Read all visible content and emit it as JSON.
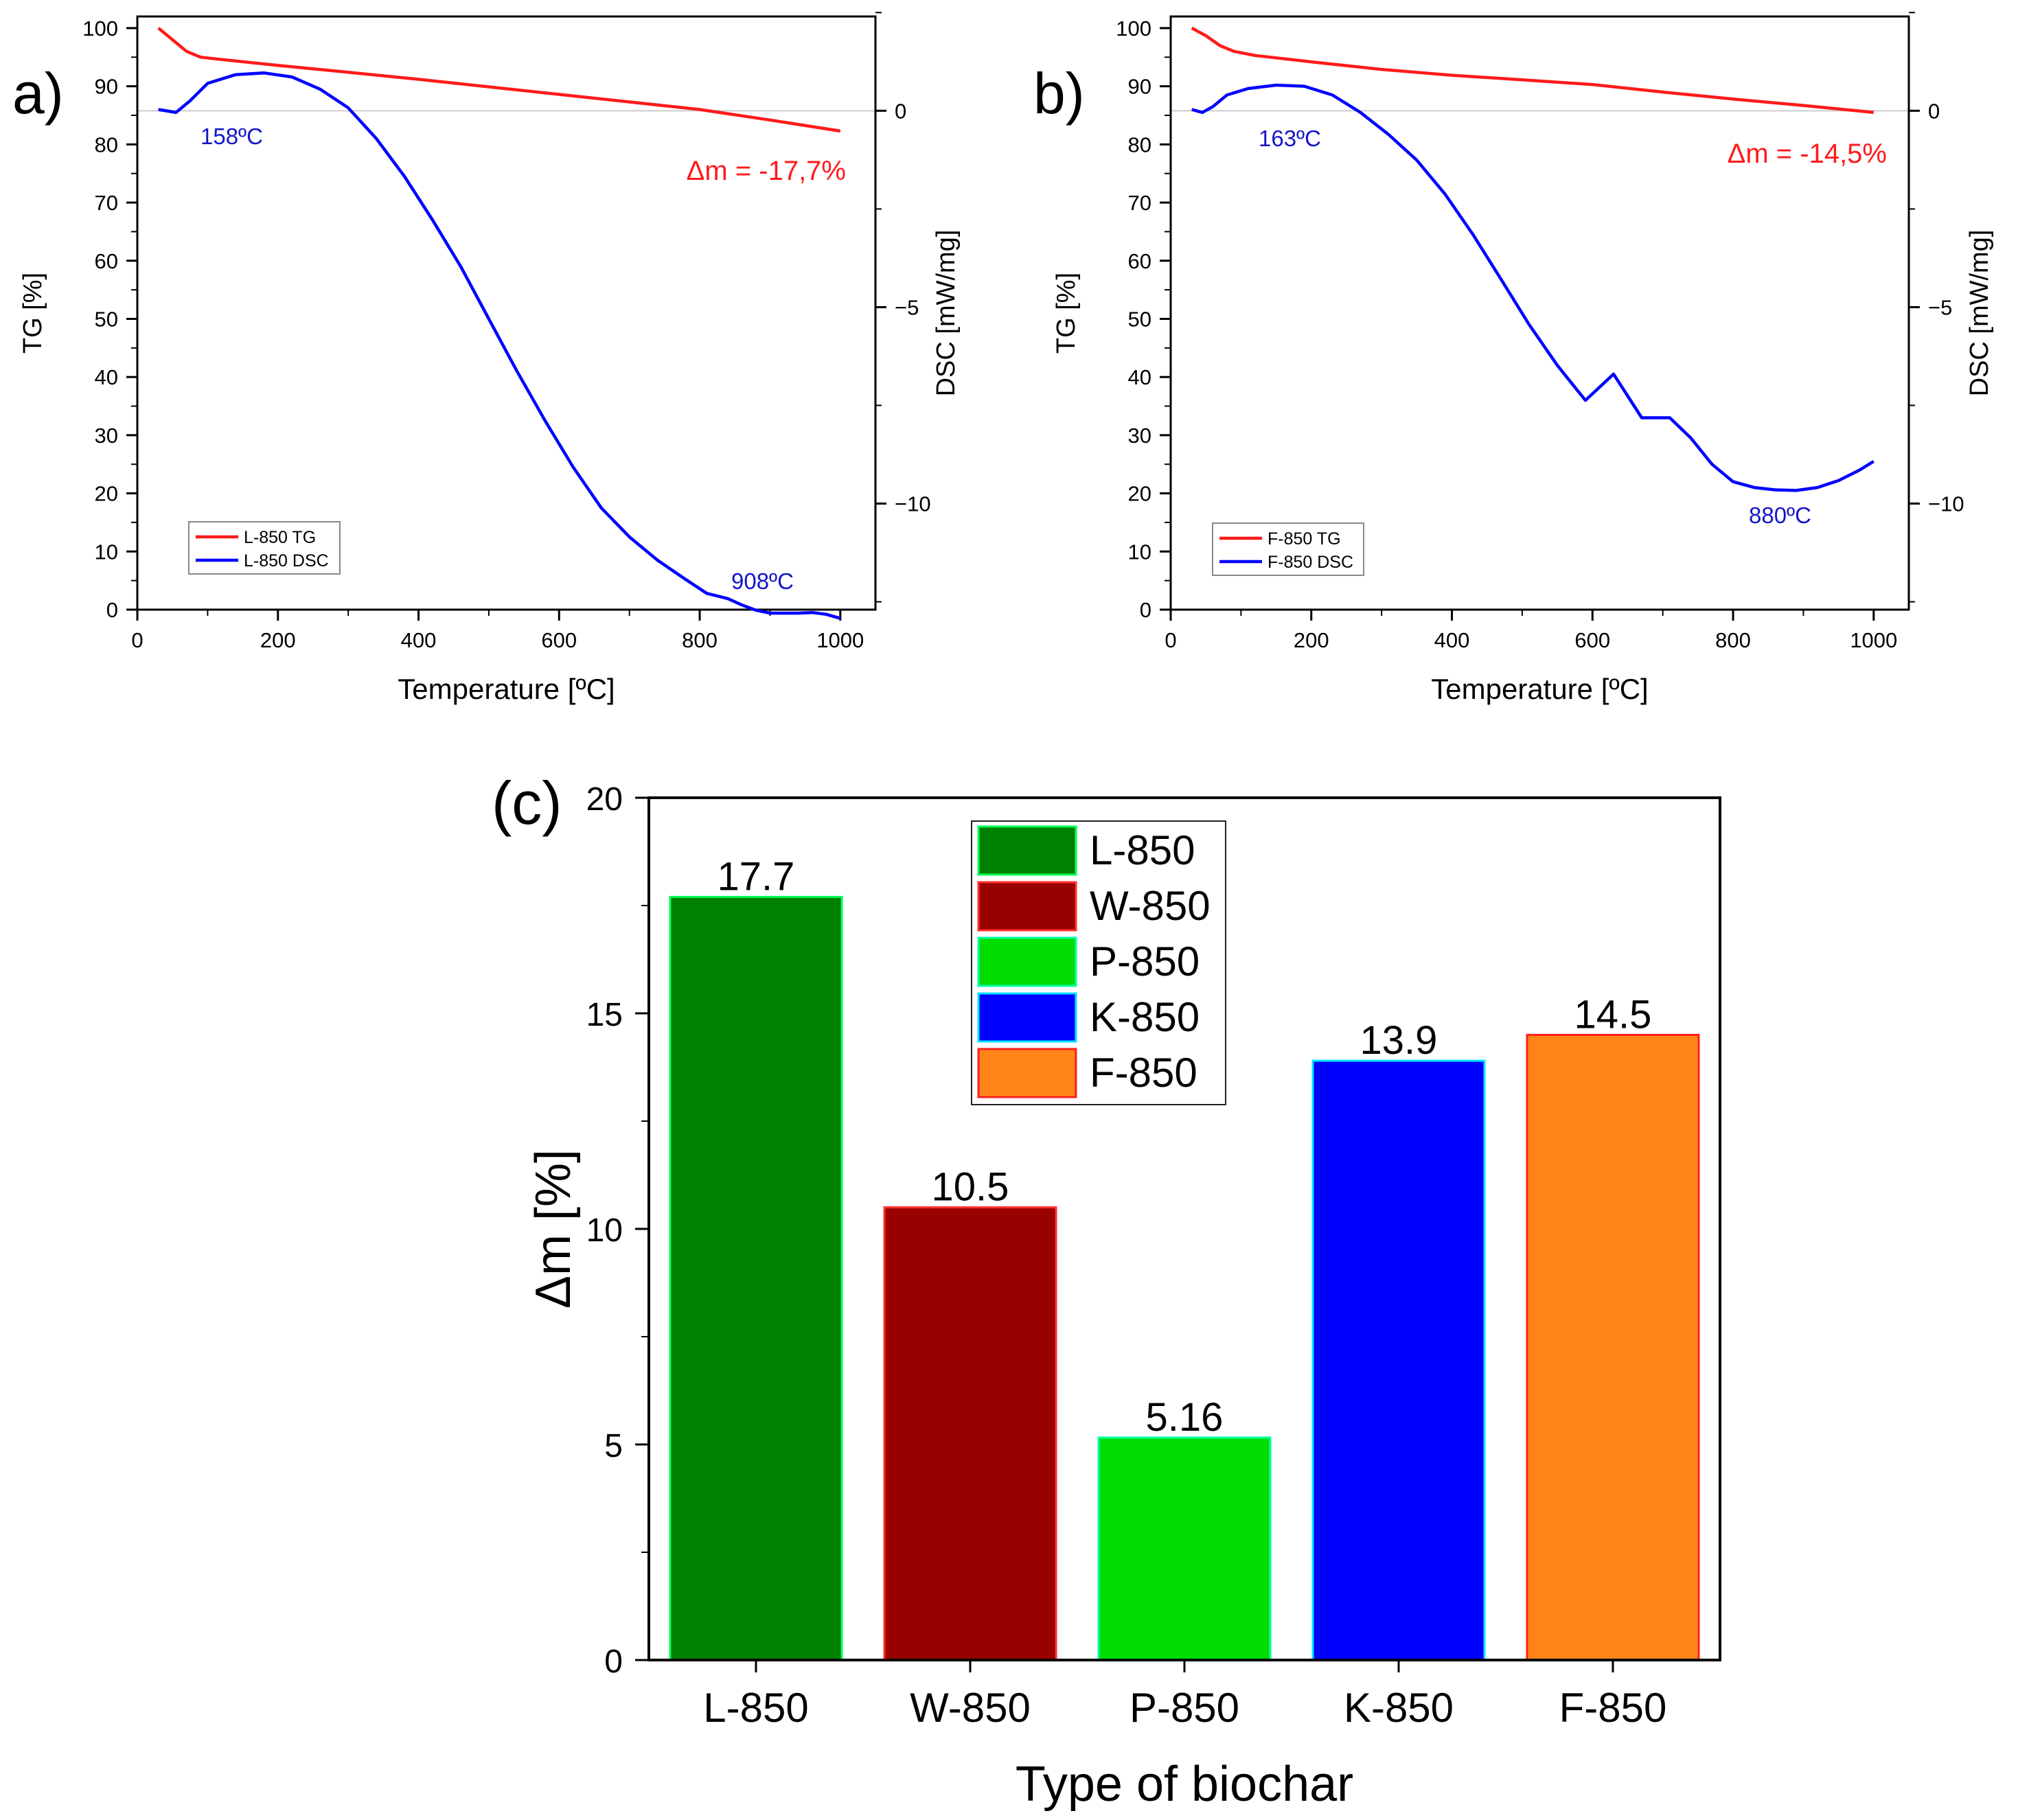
{
  "chart_data": [
    {
      "panel_label": "a)",
      "type": "line",
      "x_axis": {
        "label": "Temperature [ºC]",
        "range": [
          0,
          1050
        ],
        "ticks": [
          0,
          200,
          400,
          600,
          800,
          1000
        ]
      },
      "y_left": {
        "label": "TG [%]",
        "range": [
          0,
          102
        ],
        "ticks": [
          0,
          10,
          20,
          30,
          40,
          50,
          60,
          70,
          80,
          90,
          100
        ]
      },
      "y_right": {
        "label": "DSC [mW/mg]",
        "range": [
          -12.7,
          2.4
        ],
        "ticks": [
          0,
          -5,
          -10
        ]
      },
      "series": [
        {
          "name": "L-850 TG",
          "axis": "left",
          "color": "#ff1a1a",
          "x": [
            30,
            50,
            70,
            90,
            120,
            200,
            300,
            400,
            500,
            600,
            700,
            800,
            900,
            1000
          ],
          "y": [
            100,
            98,
            96,
            95,
            94.6,
            93.6,
            92.4,
            91.2,
            89.9,
            88.6,
            87.3,
            86.0,
            84.2,
            82.3
          ]
        },
        {
          "name": "L-850 DSC",
          "axis": "left",
          "color": "#0000ff",
          "x": [
            30,
            55,
            75,
            100,
            140,
            180,
            220,
            260,
            300,
            340,
            380,
            420,
            460,
            500,
            540,
            580,
            620,
            660,
            700,
            740,
            780,
            810,
            820,
            840,
            860,
            880,
            900,
            920,
            940,
            960,
            980,
            1000
          ],
          "y": [
            86,
            85.5,
            87.5,
            90.5,
            92,
            92.3,
            91.6,
            89.5,
            86.3,
            81,
            74.5,
            67,
            59,
            50,
            41,
            32.5,
            24.5,
            17.5,
            12.5,
            8.5,
            5.2,
            2.8,
            2.5,
            1.9,
            0.8,
            -0.1,
            -0.6,
            -0.6,
            -0.6,
            -0.5,
            -0.8,
            -1.5
          ]
        }
      ],
      "annotations": [
        {
          "text": "158ºC",
          "color": "#1515c8"
        },
        {
          "text": "908ºC",
          "color": "#1515c8"
        },
        {
          "text": "Δm = -17,7%",
          "color": "#ff1a1a"
        }
      ]
    },
    {
      "panel_label": "b)",
      "type": "line",
      "x_axis": {
        "label": "Temperature [ºC]",
        "range": [
          0,
          1050
        ],
        "ticks": [
          0,
          200,
          400,
          600,
          800,
          1000
        ]
      },
      "y_left": {
        "label": "TG [%]",
        "range": [
          0,
          102
        ],
        "ticks": [
          0,
          10,
          20,
          30,
          40,
          50,
          60,
          70,
          80,
          90,
          100
        ]
      },
      "y_right": {
        "label": "DSC [mW/mg]",
        "range": [
          -12.7,
          2.4
        ],
        "ticks": [
          0,
          -5,
          -10
        ]
      },
      "series": [
        {
          "name": "F-850 TG",
          "axis": "left",
          "color": "#ff1a1a",
          "x": [
            30,
            50,
            70,
            90,
            120,
            200,
            300,
            400,
            500,
            600,
            700,
            800,
            900,
            1000
          ],
          "y": [
            100,
            98.7,
            97,
            96,
            95.3,
            94.2,
            92.9,
            91.9,
            91.1,
            90.3,
            89,
            87.8,
            86.7,
            85.5
          ]
        },
        {
          "name": "F-850 DSC",
          "axis": "left",
          "color": "#0000ff",
          "x": [
            30,
            45,
            60,
            80,
            110,
            150,
            190,
            230,
            270,
            310,
            350,
            390,
            430,
            470,
            510,
            550,
            590,
            630,
            670,
            710,
            740,
            770,
            800,
            830,
            860,
            890,
            920,
            950,
            980,
            1000
          ],
          "y": [
            86,
            85.5,
            86.5,
            88.5,
            89.6,
            90.2,
            90,
            88.5,
            85.5,
            81.7,
            77.3,
            71.5,
            64.5,
            56.8,
            49,
            42,
            36,
            40.5,
            33,
            33,
            29.5,
            25,
            22,
            21,
            20.6,
            20.5,
            21,
            22.2,
            24,
            25.5
          ]
        }
      ],
      "annotations": [
        {
          "text": "163ºC",
          "color": "#1515c8"
        },
        {
          "text": "880ºC",
          "color": "#1515c8"
        },
        {
          "text": "Δm = -14,5%",
          "color": "#ff1a1a"
        }
      ]
    },
    {
      "panel_label": "(c)",
      "type": "bar",
      "categories": [
        "L-850",
        "W-850",
        "P-850",
        "K-850",
        "F-850"
      ],
      "values": [
        17.7,
        10.5,
        5.16,
        13.9,
        14.5
      ],
      "value_labels": [
        "17.7",
        "10.5",
        "5.16",
        "13.9",
        "14.5"
      ],
      "colors": [
        "#008000",
        "#990000",
        "#00dd00",
        "#0000ff",
        "#ff8418"
      ],
      "edge_colors": [
        "#00ff55",
        "#ff3030",
        "#00ffaa",
        "#00e5ff",
        "#ff2020"
      ],
      "xlabel": "Type of biochar",
      "ylabel": "Δm [%]",
      "ylim": [
        0,
        20
      ],
      "yticks": [
        0,
        5,
        10,
        15,
        20
      ],
      "legend": [
        "L-850",
        "W-850",
        "P-850",
        "K-850",
        "F-850"
      ],
      "legend_position": "top-center"
    }
  ]
}
